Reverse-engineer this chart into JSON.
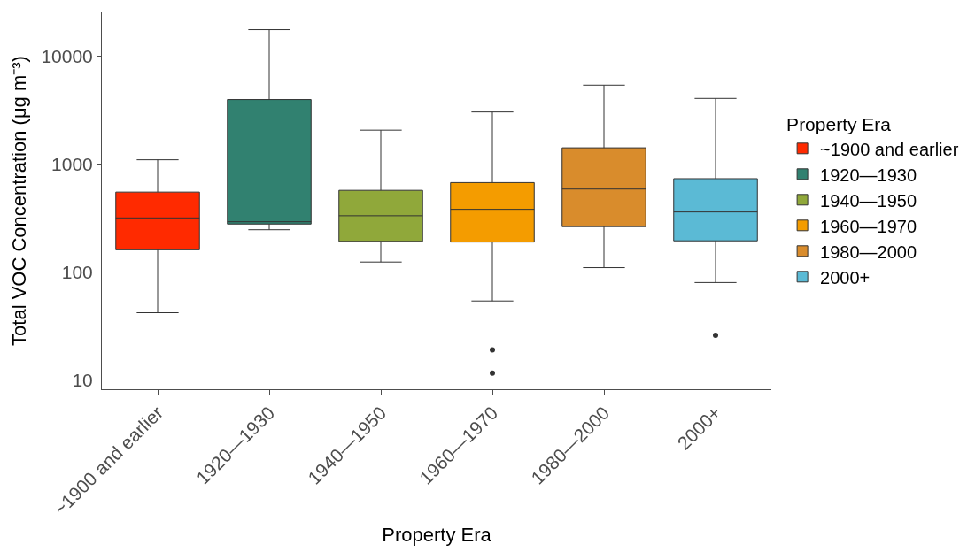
{
  "chart_data": {
    "type": "box",
    "xlabel": "Property Era",
    "ylabel": "Total VOC Concentration (μg m⁻³)",
    "legend_title": "Property Era",
    "legend": "right",
    "log": true,
    "grid": false,
    "categories": [
      "~1900 and earlier",
      "1920—1930",
      "1940—1950",
      "1960—1970",
      "1980—2000",
      "2000+"
    ],
    "series": [
      {
        "name": "~1900 and earlier",
        "color": "#ff2a00",
        "boxes": [
          {
            "low": 42,
            "q1": 161,
            "median": 318,
            "q3": 552,
            "high": 1100
          },
          null,
          null,
          null,
          null,
          null
        ]
      },
      {
        "name": "1920—1930",
        "color": "#318170",
        "boxes": [
          null,
          {
            "low": 247,
            "q1": 279,
            "median": 293,
            "q3": 3980,
            "high": 17700
          },
          null,
          null,
          null,
          null
        ]
      },
      {
        "name": "1940—1950",
        "color": "#90a83a",
        "boxes": [
          null,
          null,
          {
            "low": 124,
            "q1": 193,
            "median": 333,
            "q3": 573,
            "high": 2070
          },
          null,
          null,
          null
        ]
      },
      {
        "name": "1960—1970",
        "color": "#f49c00",
        "boxes": [
          null,
          null,
          null,
          {
            "low": 54,
            "q1": 190,
            "median": 382,
            "q3": 676,
            "high": 3050,
            "outliers": [
              19,
              11.6
            ]
          },
          null,
          null
        ]
      },
      {
        "name": "1980—2000",
        "color": "#d98c2c",
        "boxes": [
          null,
          null,
          null,
          null,
          {
            "low": 110,
            "q1": 264,
            "median": 589,
            "q3": 1420,
            "high": 5410
          },
          null
        ]
      },
      {
        "name": "2000+",
        "color": "#5bbad5",
        "boxes": [
          null,
          null,
          null,
          null,
          null,
          {
            "low": 80,
            "q1": 195,
            "median": 361,
            "q3": 735,
            "high": 4075,
            "outliers": [
              26
            ]
          }
        ]
      }
    ],
    "ylim": [
      8.2,
      25600
    ],
    "yticks": [
      10,
      100,
      1000,
      10000
    ]
  }
}
